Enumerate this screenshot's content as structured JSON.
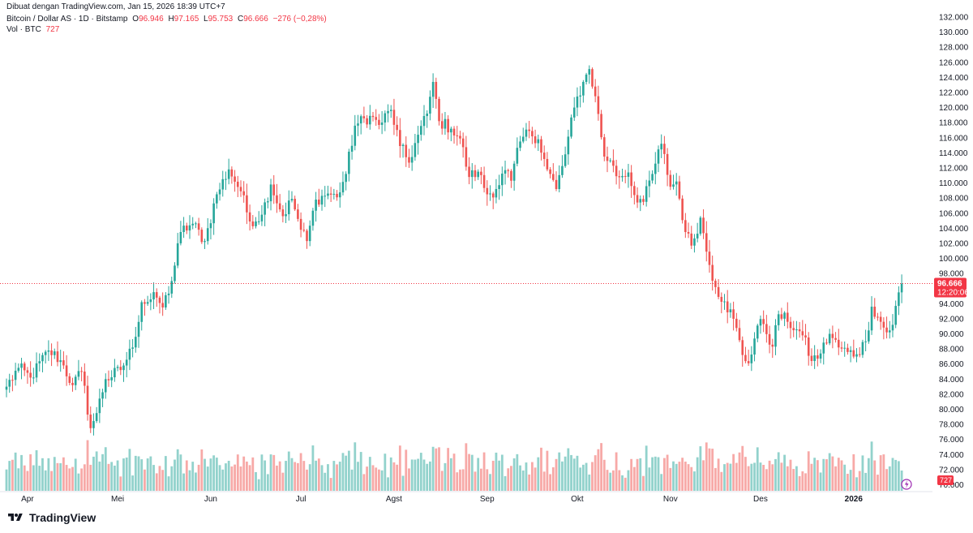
{
  "header": {
    "attribution": "Dibuat dengan TradingView.com, Jan 15, 2026 18:39 UTC+7",
    "symbol": "Bitcoin / Dollar AS · 1D · Bitstamp",
    "o_key": "O",
    "o": "96.946",
    "h_key": "H",
    "h": "97.165",
    "l_key": "L",
    "l": "95.753",
    "c_key": "C",
    "c": "96.666",
    "change": "−276 (−0,28%)",
    "vol_label": "Vol · BTC",
    "vol_value": "727"
  },
  "price_tag": {
    "price": "96.666",
    "countdown": "12:20:06"
  },
  "volume_tag": "727",
  "footer": {
    "brand": "TradingView"
  },
  "colors": {
    "up": "#26a69a",
    "down": "#ef5350",
    "up_vol": "#92d2cc",
    "down_vol": "#f7a9a7"
  },
  "chart_data": {
    "type": "candlestick",
    "y_axis": {
      "range": [
        69000,
        133000
      ],
      "ticks": [
        "132.000",
        "130.000",
        "128.000",
        "126.000",
        "124.000",
        "122.000",
        "120.000",
        "118.000",
        "116.000",
        "114.000",
        "112.000",
        "110.000",
        "108.000",
        "106.000",
        "104.000",
        "102.000",
        "100.000",
        "98.000",
        "96.000",
        "94.000",
        "92.000",
        "90.000",
        "88.000",
        "86.000",
        "84.000",
        "82.000",
        "80.000",
        "78.000",
        "76.000",
        "74.000",
        "72.000",
        "70.000"
      ]
    },
    "x_axis": {
      "ticks": [
        "Apr",
        "Mei",
        "Jun",
        "Jul",
        "Agst",
        "Sep",
        "Okt",
        "Nov",
        "Des",
        "2026"
      ],
      "tick_days": [
        7,
        37,
        68,
        98,
        129,
        160,
        190,
        221,
        251,
        282
      ]
    },
    "last_price": 96666,
    "series_anchors": [
      [
        0,
        83000
      ],
      [
        4,
        85500
      ],
      [
        8,
        84200
      ],
      [
        14,
        87800
      ],
      [
        18,
        86500
      ],
      [
        22,
        83200
      ],
      [
        25,
        85000
      ],
      [
        28,
        77500
      ],
      [
        30,
        79500
      ],
      [
        33,
        84000
      ],
      [
        38,
        85200
      ],
      [
        42,
        88200
      ],
      [
        45,
        94200
      ],
      [
        50,
        94800
      ],
      [
        52,
        93500
      ],
      [
        55,
        97000
      ],
      [
        58,
        103500
      ],
      [
        62,
        104600
      ],
      [
        66,
        102300
      ],
      [
        70,
        108500
      ],
      [
        74,
        111800
      ],
      [
        78,
        108900
      ],
      [
        81,
        104900
      ],
      [
        85,
        105800
      ],
      [
        88,
        109800
      ],
      [
        92,
        105600
      ],
      [
        95,
        107900
      ],
      [
        98,
        103800
      ],
      [
        100,
        102300
      ],
      [
        103,
        107800
      ],
      [
        107,
        108600
      ],
      [
        110,
        108100
      ],
      [
        113,
        111200
      ],
      [
        116,
        117600
      ],
      [
        121,
        118900
      ],
      [
        124,
        117700
      ],
      [
        128,
        119700
      ],
      [
        131,
        114900
      ],
      [
        134,
        112700
      ],
      [
        136,
        115300
      ],
      [
        140,
        119200
      ],
      [
        142,
        123400
      ],
      [
        144,
        118200
      ],
      [
        148,
        117200
      ],
      [
        151,
        115900
      ],
      [
        154,
        110800
      ],
      [
        157,
        111500
      ],
      [
        160,
        108500
      ],
      [
        163,
        109200
      ],
      [
        166,
        111700
      ],
      [
        168,
        110300
      ],
      [
        171,
        115500
      ],
      [
        174,
        116900
      ],
      [
        177,
        115800
      ],
      [
        180,
        111800
      ],
      [
        183,
        109200
      ],
      [
        186,
        113800
      ],
      [
        189,
        120000
      ],
      [
        192,
        123400
      ],
      [
        194,
        125100
      ],
      [
        196,
        121500
      ],
      [
        199,
        113500
      ],
      [
        201,
        113000
      ],
      [
        203,
        110900
      ],
      [
        207,
        111400
      ],
      [
        209,
        108400
      ],
      [
        212,
        107500
      ],
      [
        215,
        111200
      ],
      [
        218,
        115200
      ],
      [
        221,
        109500
      ],
      [
        223,
        110200
      ],
      [
        226,
        103500
      ],
      [
        228,
        101700
      ],
      [
        231,
        105400
      ],
      [
        233,
        100900
      ],
      [
        236,
        96200
      ],
      [
        239,
        94300
      ],
      [
        242,
        92000
      ],
      [
        245,
        87200
      ],
      [
        247,
        86100
      ],
      [
        250,
        91100
      ],
      [
        252,
        91300
      ],
      [
        255,
        88300
      ],
      [
        257,
        92600
      ],
      [
        260,
        91600
      ],
      [
        263,
        90600
      ],
      [
        265,
        89800
      ],
      [
        268,
        86400
      ],
      [
        271,
        87400
      ],
      [
        274,
        90000
      ],
      [
        277,
        88200
      ],
      [
        280,
        87600
      ],
      [
        283,
        87300
      ],
      [
        286,
        89000
      ],
      [
        288,
        93600
      ],
      [
        291,
        91600
      ],
      [
        293,
        90200
      ],
      [
        295,
        91200
      ],
      [
        297,
        95500
      ],
      [
        298,
        96666
      ]
    ]
  }
}
